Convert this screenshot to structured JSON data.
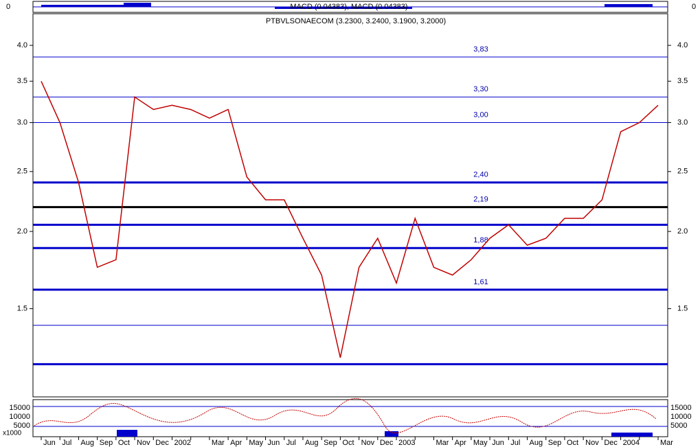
{
  "chart_data": {
    "type": "line",
    "title": "PTBVLSONAECOM (3.2300, 3.2400, 3.1900, 3.2000)",
    "macd_label": "MACD (0.04383), MACD (0.04383)",
    "macd_zero": "0",
    "volume_ticks": [
      "15000",
      "10000",
      "5000"
    ],
    "volume_unit": "x1000",
    "categories": [
      "Jun",
      "Jul",
      "Aug",
      "Sep",
      "Oct",
      "Nov",
      "Dec",
      "2002",
      null,
      "Mar",
      "Apr",
      "May",
      "Jun",
      "Jul",
      "Aug",
      "Sep",
      "Oct",
      "Nov",
      "Dec",
      "2003",
      null,
      "Mar",
      "Apr",
      "May",
      "Jun",
      "Jul",
      "Aug",
      "Sep",
      "Oct",
      "Nov",
      "Dec",
      "2004",
      null,
      "Mar"
    ],
    "series": [
      {
        "color": "#c00000",
        "values": [
          3.5,
          3.0,
          2.4,
          1.75,
          1.8,
          3.3,
          3.15,
          3.2,
          3.15,
          3.05,
          3.15,
          2.45,
          2.25,
          2.25,
          1.95,
          1.7,
          1.25,
          1.75,
          1.95,
          1.65,
          2.1,
          1.75,
          1.7,
          1.8,
          1.95,
          2.05,
          1.9,
          1.95,
          2.1,
          2.1,
          2.25,
          2.9,
          3.0,
          3.2
        ]
      }
    ],
    "levels": [
      {
        "value": 3.83,
        "label": "3,83",
        "color": "#0000cc"
      },
      {
        "value": 3.3,
        "label": "3,30",
        "color": "#0000cc"
      },
      {
        "value": 3.0,
        "label": "3,00",
        "color": "#0000cc"
      },
      {
        "value": 2.4,
        "label": "2,40",
        "color": "#0000cc"
      },
      {
        "value": 2.19,
        "label": "2,19",
        "color": "#000000"
      },
      {
        "value": 2.05,
        "color": "#0000cc"
      },
      {
        "value": 1.88,
        "label": "1,88",
        "color": "#0000cc"
      },
      {
        "value": 1.61,
        "label": "1,61",
        "color": "#0000cc"
      },
      {
        "value": 1.41,
        "color": "#0000cc"
      },
      {
        "value": 1.22,
        "color": "#0000cc"
      }
    ],
    "ylim": [
      1.08,
      4.5
    ],
    "yticks": [
      {
        "value": 1.5,
        "label": "1.5"
      },
      {
        "value": 2.0,
        "label": "2.0"
      },
      {
        "value": 2.5,
        "label": "2.5"
      },
      {
        "value": 3.0,
        "label": "3.0"
      },
      {
        "value": 3.5,
        "label": "3.5"
      },
      {
        "value": 4.0,
        "label": "4.0"
      }
    ],
    "log_scale": true
  }
}
